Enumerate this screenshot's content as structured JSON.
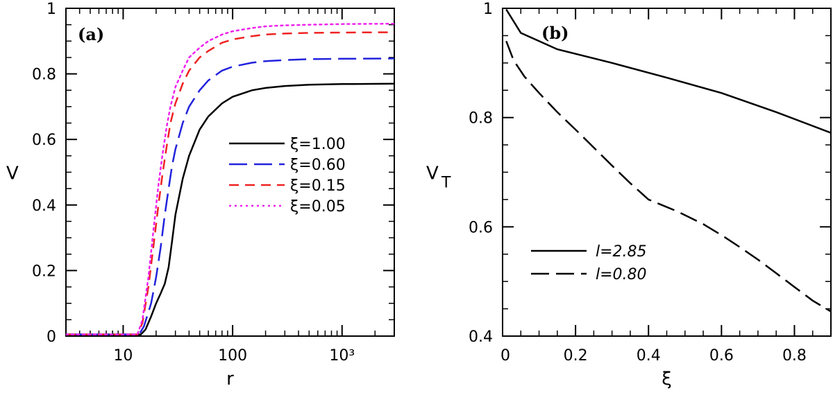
{
  "chart_data": [
    {
      "type": "line",
      "panel_label": "(a)",
      "xlabel": "r",
      "ylabel": "V",
      "xscale": "log",
      "xlim": [
        3,
        3000
      ],
      "ylim": [
        0,
        1
      ],
      "xticks": [
        {
          "value": 10,
          "label": "10"
        },
        {
          "value": 100,
          "label": "100"
        },
        {
          "value": 1000,
          "label": "10³"
        }
      ],
      "yticks": [
        {
          "value": 0,
          "label": "0"
        },
        {
          "value": 0.2,
          "label": "0.2"
        },
        {
          "value": 0.4,
          "label": "0.4"
        },
        {
          "value": 0.6,
          "label": "0.6"
        },
        {
          "value": 0.8,
          "label": "0.8"
        },
        {
          "value": 1,
          "label": "1"
        }
      ],
      "legend_position": "center-right",
      "series": [
        {
          "name": "ξ=1.00",
          "color": "#000000",
          "dash": "solid",
          "x": [
            3,
            14.5,
            16,
            18,
            20,
            22,
            24,
            26,
            28,
            30,
            35,
            40,
            50,
            60,
            80,
            100,
            150,
            200,
            300,
            500,
            1000,
            3000
          ],
          "y": [
            0.005,
            0.005,
            0.02,
            0.06,
            0.1,
            0.13,
            0.16,
            0.21,
            0.29,
            0.37,
            0.48,
            0.55,
            0.63,
            0.67,
            0.71,
            0.73,
            0.75,
            0.757,
            0.763,
            0.767,
            0.769,
            0.77
          ]
        },
        {
          "name": "ξ=0.60",
          "color": "#2222dd",
          "dash": "long",
          "x": [
            3,
            14,
            15.5,
            18,
            20,
            22,
            24,
            26,
            28,
            30,
            35,
            40,
            50,
            60,
            80,
            100,
            150,
            200,
            300,
            500,
            1000,
            3000
          ],
          "y": [
            0.005,
            0.005,
            0.03,
            0.1,
            0.18,
            0.27,
            0.37,
            0.45,
            0.52,
            0.57,
            0.65,
            0.7,
            0.75,
            0.78,
            0.81,
            0.822,
            0.834,
            0.839,
            0.842,
            0.845,
            0.846,
            0.847
          ]
        },
        {
          "name": "ξ=0.15",
          "color": "#ee2222",
          "dash": "short",
          "x": [
            3,
            13.5,
            15,
            17,
            19,
            21,
            23,
            25,
            27,
            30,
            35,
            40,
            50,
            60,
            80,
            100,
            150,
            200,
            300,
            500,
            1000,
            3000
          ],
          "y": [
            0.005,
            0.005,
            0.04,
            0.15,
            0.28,
            0.4,
            0.5,
            0.58,
            0.65,
            0.71,
            0.77,
            0.81,
            0.85,
            0.87,
            0.895,
            0.905,
            0.915,
            0.92,
            0.923,
            0.925,
            0.926,
            0.927
          ]
        },
        {
          "name": "ξ=0.05",
          "color": "#ee22ee",
          "dash": "dot",
          "x": [
            3,
            13.5,
            15,
            17,
            19,
            21,
            23,
            25,
            27,
            30,
            35,
            40,
            50,
            60,
            80,
            100,
            150,
            200,
            300,
            500,
            1000,
            3000
          ],
          "y": [
            0.005,
            0.005,
            0.05,
            0.18,
            0.33,
            0.46,
            0.56,
            0.64,
            0.7,
            0.76,
            0.81,
            0.85,
            0.88,
            0.9,
            0.92,
            0.93,
            0.94,
            0.945,
            0.948,
            0.95,
            0.952,
            0.953
          ]
        }
      ]
    },
    {
      "type": "line",
      "panel_label": "(b)",
      "xlabel": "ξ",
      "ylabel": "V",
      "ylabel_sub": "T",
      "xlim": [
        0,
        0.9
      ],
      "ylim": [
        0.4,
        1.0
      ],
      "xticks": [
        {
          "value": 0,
          "label": "0"
        },
        {
          "value": 0.2,
          "label": "0.2"
        },
        {
          "value": 0.4,
          "label": "0.4"
        },
        {
          "value": 0.6,
          "label": "0.6"
        },
        {
          "value": 0.8,
          "label": "0.8"
        }
      ],
      "yticks": [
        {
          "value": 0.4,
          "label": "0.4"
        },
        {
          "value": 0.6,
          "label": "0.6"
        },
        {
          "value": 0.8,
          "label": "0.8"
        },
        {
          "value": 1.0,
          "label": "1"
        }
      ],
      "legend_position": "bottom-left",
      "series": [
        {
          "name": "l=2.85",
          "color": "#000000",
          "dash": "solid",
          "x": [
            0.01,
            0.05,
            0.15,
            0.3,
            0.45,
            0.6,
            0.75,
            0.9
          ],
          "y": [
            0.998,
            0.955,
            0.925,
            0.9,
            0.873,
            0.845,
            0.81,
            0.772
          ]
        },
        {
          "name": "l=0.80",
          "color": "#000000",
          "dash": "long",
          "x": [
            0.01,
            0.03,
            0.06,
            0.1,
            0.15,
            0.2,
            0.25,
            0.3,
            0.35,
            0.4,
            0.48,
            0.55,
            0.6,
            0.65,
            0.7,
            0.75,
            0.8,
            0.85,
            0.9
          ],
          "y": [
            0.94,
            0.905,
            0.875,
            0.845,
            0.81,
            0.778,
            0.745,
            0.712,
            0.68,
            0.65,
            0.628,
            0.605,
            0.585,
            0.563,
            0.54,
            0.515,
            0.49,
            0.465,
            0.445
          ]
        }
      ]
    }
  ]
}
